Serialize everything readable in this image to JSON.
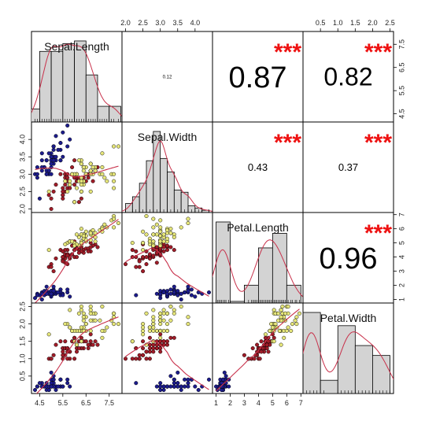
{
  "chart_data": {
    "type": "scatter-matrix",
    "variables": [
      "Sepal.Length",
      "Sepal.Width",
      "Petal.Length",
      "Petal.Width"
    ],
    "ranges": [
      [
        4.3,
        7.9
      ],
      [
        2.0,
        4.4
      ],
      [
        1.0,
        6.9
      ],
      [
        0.1,
        2.5
      ]
    ],
    "ticks": [
      [
        "4.5",
        "5.5",
        "6.5",
        "7.5"
      ],
      [
        "2.0",
        "2.5",
        "3.0",
        "3.5",
        "4.0"
      ],
      [
        "1",
        "2",
        "3",
        "4",
        "5",
        "6",
        "7"
      ],
      [
        "0.5",
        "1.0",
        "1.5",
        "2.0",
        "2.5"
      ]
    ],
    "correlations": [
      {
        "row": 0,
        "col": 1,
        "value": "0.12",
        "stars": ""
      },
      {
        "row": 0,
        "col": 2,
        "value": "0.87",
        "stars": "***"
      },
      {
        "row": 0,
        "col": 3,
        "value": "0.82",
        "stars": "***"
      },
      {
        "row": 1,
        "col": 2,
        "value": "0.43",
        "stars": "***"
      },
      {
        "row": 1,
        "col": 3,
        "value": "0.37",
        "stars": "***"
      },
      {
        "row": 2,
        "col": 3,
        "value": "0.96",
        "stars": "***"
      }
    ],
    "histograms": [
      {
        "breaks": [
          4.0,
          4.5,
          5.0,
          5.5,
          6.0,
          6.5,
          7.0,
          7.5,
          8.0
        ],
        "counts": [
          5,
          27,
          27,
          30,
          31,
          18,
          6,
          6
        ]
      },
      {
        "breaks": [
          2.0,
          2.2,
          2.4,
          2.6,
          2.8,
          3.0,
          3.2,
          3.4,
          3.6,
          3.8,
          4.0,
          4.2,
          4.4
        ],
        "counts": [
          4,
          7,
          13,
          23,
          36,
          24,
          18,
          10,
          9,
          3,
          2,
          1
        ]
      },
      {
        "breaks": [
          1,
          2,
          3,
          4,
          5,
          6,
          7
        ],
        "counts": [
          50,
          1,
          11,
          34,
          43,
          11
        ]
      },
      {
        "breaks": [
          0,
          0.5,
          1.0,
          1.5,
          2.0,
          2.5
        ],
        "counts": [
          49,
          8,
          41,
          29,
          23
        ]
      }
    ],
    "species_colors": {
      "setosa": "#1c1c8c",
      "versicolor": "#a01c28",
      "virginica": "#e6e67a"
    },
    "smoother_color": "#c8304a",
    "data": [
      [
        5.1,
        3.5,
        1.4,
        0.2,
        0
      ],
      [
        4.9,
        3.0,
        1.4,
        0.2,
        0
      ],
      [
        4.7,
        3.2,
        1.3,
        0.2,
        0
      ],
      [
        4.6,
        3.1,
        1.5,
        0.2,
        0
      ],
      [
        5.0,
        3.6,
        1.4,
        0.2,
        0
      ],
      [
        5.4,
        3.9,
        1.7,
        0.4,
        0
      ],
      [
        4.6,
        3.4,
        1.4,
        0.3,
        0
      ],
      [
        5.0,
        3.4,
        1.5,
        0.2,
        0
      ],
      [
        4.4,
        2.9,
        1.4,
        0.2,
        0
      ],
      [
        4.9,
        3.1,
        1.5,
        0.1,
        0
      ],
      [
        5.4,
        3.7,
        1.5,
        0.2,
        0
      ],
      [
        4.8,
        3.4,
        1.6,
        0.2,
        0
      ],
      [
        4.8,
        3.0,
        1.4,
        0.1,
        0
      ],
      [
        4.3,
        3.0,
        1.1,
        0.1,
        0
      ],
      [
        5.8,
        4.0,
        1.2,
        0.2,
        0
      ],
      [
        5.7,
        4.4,
        1.5,
        0.4,
        0
      ],
      [
        5.4,
        3.9,
        1.3,
        0.4,
        0
      ],
      [
        5.1,
        3.5,
        1.4,
        0.3,
        0
      ],
      [
        5.7,
        3.8,
        1.7,
        0.3,
        0
      ],
      [
        5.1,
        3.8,
        1.5,
        0.3,
        0
      ],
      [
        5.4,
        3.4,
        1.7,
        0.2,
        0
      ],
      [
        5.1,
        3.7,
        1.5,
        0.4,
        0
      ],
      [
        4.6,
        3.6,
        1.0,
        0.2,
        0
      ],
      [
        5.1,
        3.3,
        1.7,
        0.5,
        0
      ],
      [
        4.8,
        3.4,
        1.9,
        0.2,
        0
      ],
      [
        5.0,
        3.0,
        1.6,
        0.2,
        0
      ],
      [
        5.0,
        3.4,
        1.6,
        0.4,
        0
      ],
      [
        5.2,
        3.5,
        1.5,
        0.2,
        0
      ],
      [
        5.2,
        3.4,
        1.4,
        0.2,
        0
      ],
      [
        4.7,
        3.2,
        1.6,
        0.2,
        0
      ],
      [
        4.8,
        3.1,
        1.6,
        0.2,
        0
      ],
      [
        5.4,
        3.4,
        1.5,
        0.4,
        0
      ],
      [
        5.2,
        4.1,
        1.5,
        0.1,
        0
      ],
      [
        5.5,
        4.2,
        1.4,
        0.2,
        0
      ],
      [
        4.9,
        3.1,
        1.5,
        0.2,
        0
      ],
      [
        5.0,
        3.2,
        1.2,
        0.2,
        0
      ],
      [
        5.5,
        3.5,
        1.3,
        0.2,
        0
      ],
      [
        4.9,
        3.6,
        1.4,
        0.1,
        0
      ],
      [
        4.4,
        3.0,
        1.3,
        0.2,
        0
      ],
      [
        5.1,
        3.4,
        1.5,
        0.2,
        0
      ],
      [
        5.0,
        3.5,
        1.3,
        0.3,
        0
      ],
      [
        4.5,
        2.3,
        1.3,
        0.3,
        0
      ],
      [
        4.4,
        3.2,
        1.3,
        0.2,
        0
      ],
      [
        5.0,
        3.5,
        1.6,
        0.6,
        0
      ],
      [
        5.1,
        3.8,
        1.9,
        0.4,
        0
      ],
      [
        4.8,
        3.0,
        1.4,
        0.3,
        0
      ],
      [
        5.1,
        3.8,
        1.6,
        0.2,
        0
      ],
      [
        4.6,
        3.2,
        1.4,
        0.2,
        0
      ],
      [
        5.3,
        3.7,
        1.5,
        0.2,
        0
      ],
      [
        5.0,
        3.3,
        1.4,
        0.2,
        0
      ],
      [
        7.0,
        3.2,
        4.7,
        1.4,
        1
      ],
      [
        6.4,
        3.2,
        4.5,
        1.5,
        1
      ],
      [
        6.9,
        3.1,
        4.9,
        1.5,
        1
      ],
      [
        5.5,
        2.3,
        4.0,
        1.3,
        1
      ],
      [
        6.5,
        2.8,
        4.6,
        1.5,
        1
      ],
      [
        5.7,
        2.8,
        4.5,
        1.3,
        1
      ],
      [
        6.3,
        3.3,
        4.7,
        1.6,
        1
      ],
      [
        4.9,
        2.4,
        3.3,
        1.0,
        1
      ],
      [
        6.6,
        2.9,
        4.6,
        1.3,
        1
      ],
      [
        5.2,
        2.7,
        3.9,
        1.4,
        1
      ],
      [
        5.0,
        2.0,
        3.5,
        1.0,
        1
      ],
      [
        5.9,
        3.0,
        4.2,
        1.5,
        1
      ],
      [
        6.0,
        2.2,
        4.0,
        1.0,
        1
      ],
      [
        6.1,
        2.9,
        4.7,
        1.4,
        1
      ],
      [
        5.6,
        2.9,
        3.6,
        1.3,
        1
      ],
      [
        6.7,
        3.1,
        4.4,
        1.4,
        1
      ],
      [
        5.6,
        3.0,
        4.5,
        1.5,
        1
      ],
      [
        5.8,
        2.7,
        4.1,
        1.0,
        1
      ],
      [
        6.2,
        2.2,
        4.5,
        1.5,
        1
      ],
      [
        5.6,
        2.5,
        3.9,
        1.1,
        1
      ],
      [
        5.9,
        3.2,
        4.8,
        1.8,
        1
      ],
      [
        6.1,
        2.8,
        4.0,
        1.3,
        1
      ],
      [
        6.3,
        2.5,
        4.9,
        1.5,
        1
      ],
      [
        6.1,
        2.8,
        4.7,
        1.2,
        1
      ],
      [
        6.4,
        2.9,
        4.3,
        1.3,
        1
      ],
      [
        6.6,
        3.0,
        4.4,
        1.4,
        1
      ],
      [
        6.8,
        2.8,
        4.8,
        1.4,
        1
      ],
      [
        6.7,
        3.0,
        5.0,
        1.7,
        1
      ],
      [
        6.0,
        2.9,
        4.5,
        1.5,
        1
      ],
      [
        5.7,
        2.6,
        3.5,
        1.0,
        1
      ],
      [
        5.5,
        2.4,
        3.8,
        1.1,
        1
      ],
      [
        5.5,
        2.4,
        3.7,
        1.0,
        1
      ],
      [
        5.8,
        2.7,
        3.9,
        1.2,
        1
      ],
      [
        6.0,
        2.7,
        5.1,
        1.6,
        1
      ],
      [
        5.4,
        3.0,
        4.5,
        1.5,
        1
      ],
      [
        6.0,
        3.4,
        4.5,
        1.6,
        1
      ],
      [
        6.7,
        3.1,
        4.7,
        1.5,
        1
      ],
      [
        6.3,
        2.3,
        4.4,
        1.3,
        1
      ],
      [
        5.6,
        3.0,
        4.1,
        1.3,
        1
      ],
      [
        5.5,
        2.5,
        4.0,
        1.3,
        1
      ],
      [
        5.5,
        2.6,
        4.4,
        1.2,
        1
      ],
      [
        6.1,
        3.0,
        4.6,
        1.4,
        1
      ],
      [
        5.8,
        2.6,
        4.0,
        1.2,
        1
      ],
      [
        5.0,
        2.3,
        3.3,
        1.0,
        1
      ],
      [
        5.6,
        2.7,
        4.2,
        1.3,
        1
      ],
      [
        5.7,
        3.0,
        4.2,
        1.2,
        1
      ],
      [
        5.7,
        2.9,
        4.2,
        1.3,
        1
      ],
      [
        6.2,
        2.9,
        4.3,
        1.3,
        1
      ],
      [
        5.1,
        2.5,
        3.0,
        1.1,
        1
      ],
      [
        5.7,
        2.8,
        4.1,
        1.3,
        1
      ],
      [
        6.3,
        3.3,
        6.0,
        2.5,
        2
      ],
      [
        5.8,
        2.7,
        5.1,
        1.9,
        2
      ],
      [
        7.1,
        3.0,
        5.9,
        2.1,
        2
      ],
      [
        6.3,
        2.9,
        5.6,
        1.8,
        2
      ],
      [
        6.5,
        3.0,
        5.8,
        2.2,
        2
      ],
      [
        7.6,
        3.0,
        6.6,
        2.1,
        2
      ],
      [
        4.9,
        2.5,
        4.5,
        1.7,
        2
      ],
      [
        7.3,
        2.9,
        6.3,
        1.8,
        2
      ],
      [
        6.7,
        2.5,
        5.8,
        1.8,
        2
      ],
      [
        7.2,
        3.6,
        6.1,
        2.5,
        2
      ],
      [
        6.5,
        3.2,
        5.1,
        2.0,
        2
      ],
      [
        6.4,
        2.7,
        5.3,
        1.9,
        2
      ],
      [
        6.8,
        3.0,
        5.5,
        2.1,
        2
      ],
      [
        5.7,
        2.5,
        5.0,
        2.0,
        2
      ],
      [
        5.8,
        2.8,
        5.1,
        2.4,
        2
      ],
      [
        6.4,
        3.2,
        5.3,
        2.3,
        2
      ],
      [
        6.5,
        3.0,
        5.5,
        1.8,
        2
      ],
      [
        7.7,
        3.8,
        6.7,
        2.2,
        2
      ],
      [
        7.7,
        2.6,
        6.9,
        2.3,
        2
      ],
      [
        6.0,
        2.2,
        5.0,
        1.5,
        2
      ],
      [
        6.9,
        3.2,
        5.7,
        2.3,
        2
      ],
      [
        5.6,
        2.8,
        4.9,
        2.0,
        2
      ],
      [
        7.7,
        2.8,
        6.7,
        2.0,
        2
      ],
      [
        6.3,
        2.7,
        4.9,
        1.8,
        2
      ],
      [
        6.7,
        3.3,
        5.7,
        2.1,
        2
      ],
      [
        7.2,
        3.2,
        6.0,
        1.8,
        2
      ],
      [
        6.2,
        2.8,
        4.8,
        1.8,
        2
      ],
      [
        6.1,
        3.0,
        4.9,
        1.8,
        2
      ],
      [
        6.4,
        2.8,
        5.6,
        2.1,
        2
      ],
      [
        7.2,
        3.0,
        5.8,
        1.6,
        2
      ],
      [
        7.4,
        2.8,
        6.1,
        1.9,
        2
      ],
      [
        7.9,
        3.8,
        6.4,
        2.0,
        2
      ],
      [
        6.4,
        2.8,
        5.6,
        2.2,
        2
      ],
      [
        6.3,
        2.8,
        5.1,
        1.5,
        2
      ],
      [
        6.1,
        2.6,
        5.6,
        1.4,
        2
      ],
      [
        7.7,
        3.0,
        6.1,
        2.3,
        2
      ],
      [
        6.3,
        3.4,
        5.6,
        2.4,
        2
      ],
      [
        6.4,
        3.1,
        5.5,
        1.8,
        2
      ],
      [
        6.0,
        3.0,
        4.8,
        1.8,
        2
      ],
      [
        6.9,
        3.1,
        5.4,
        2.1,
        2
      ],
      [
        6.7,
        3.1,
        5.6,
        2.4,
        2
      ],
      [
        6.9,
        3.1,
        5.1,
        2.3,
        2
      ],
      [
        5.8,
        2.7,
        5.1,
        1.9,
        2
      ],
      [
        6.8,
        3.2,
        5.9,
        2.3,
        2
      ],
      [
        6.7,
        3.3,
        5.7,
        2.5,
        2
      ],
      [
        6.7,
        3.0,
        5.2,
        2.3,
        2
      ],
      [
        6.3,
        2.5,
        5.0,
        1.9,
        2
      ],
      [
        6.5,
        3.0,
        5.2,
        2.0,
        2
      ],
      [
        6.2,
        3.4,
        5.4,
        2.3,
        2
      ],
      [
        5.9,
        3.0,
        5.1,
        1.8,
        2
      ]
    ]
  }
}
